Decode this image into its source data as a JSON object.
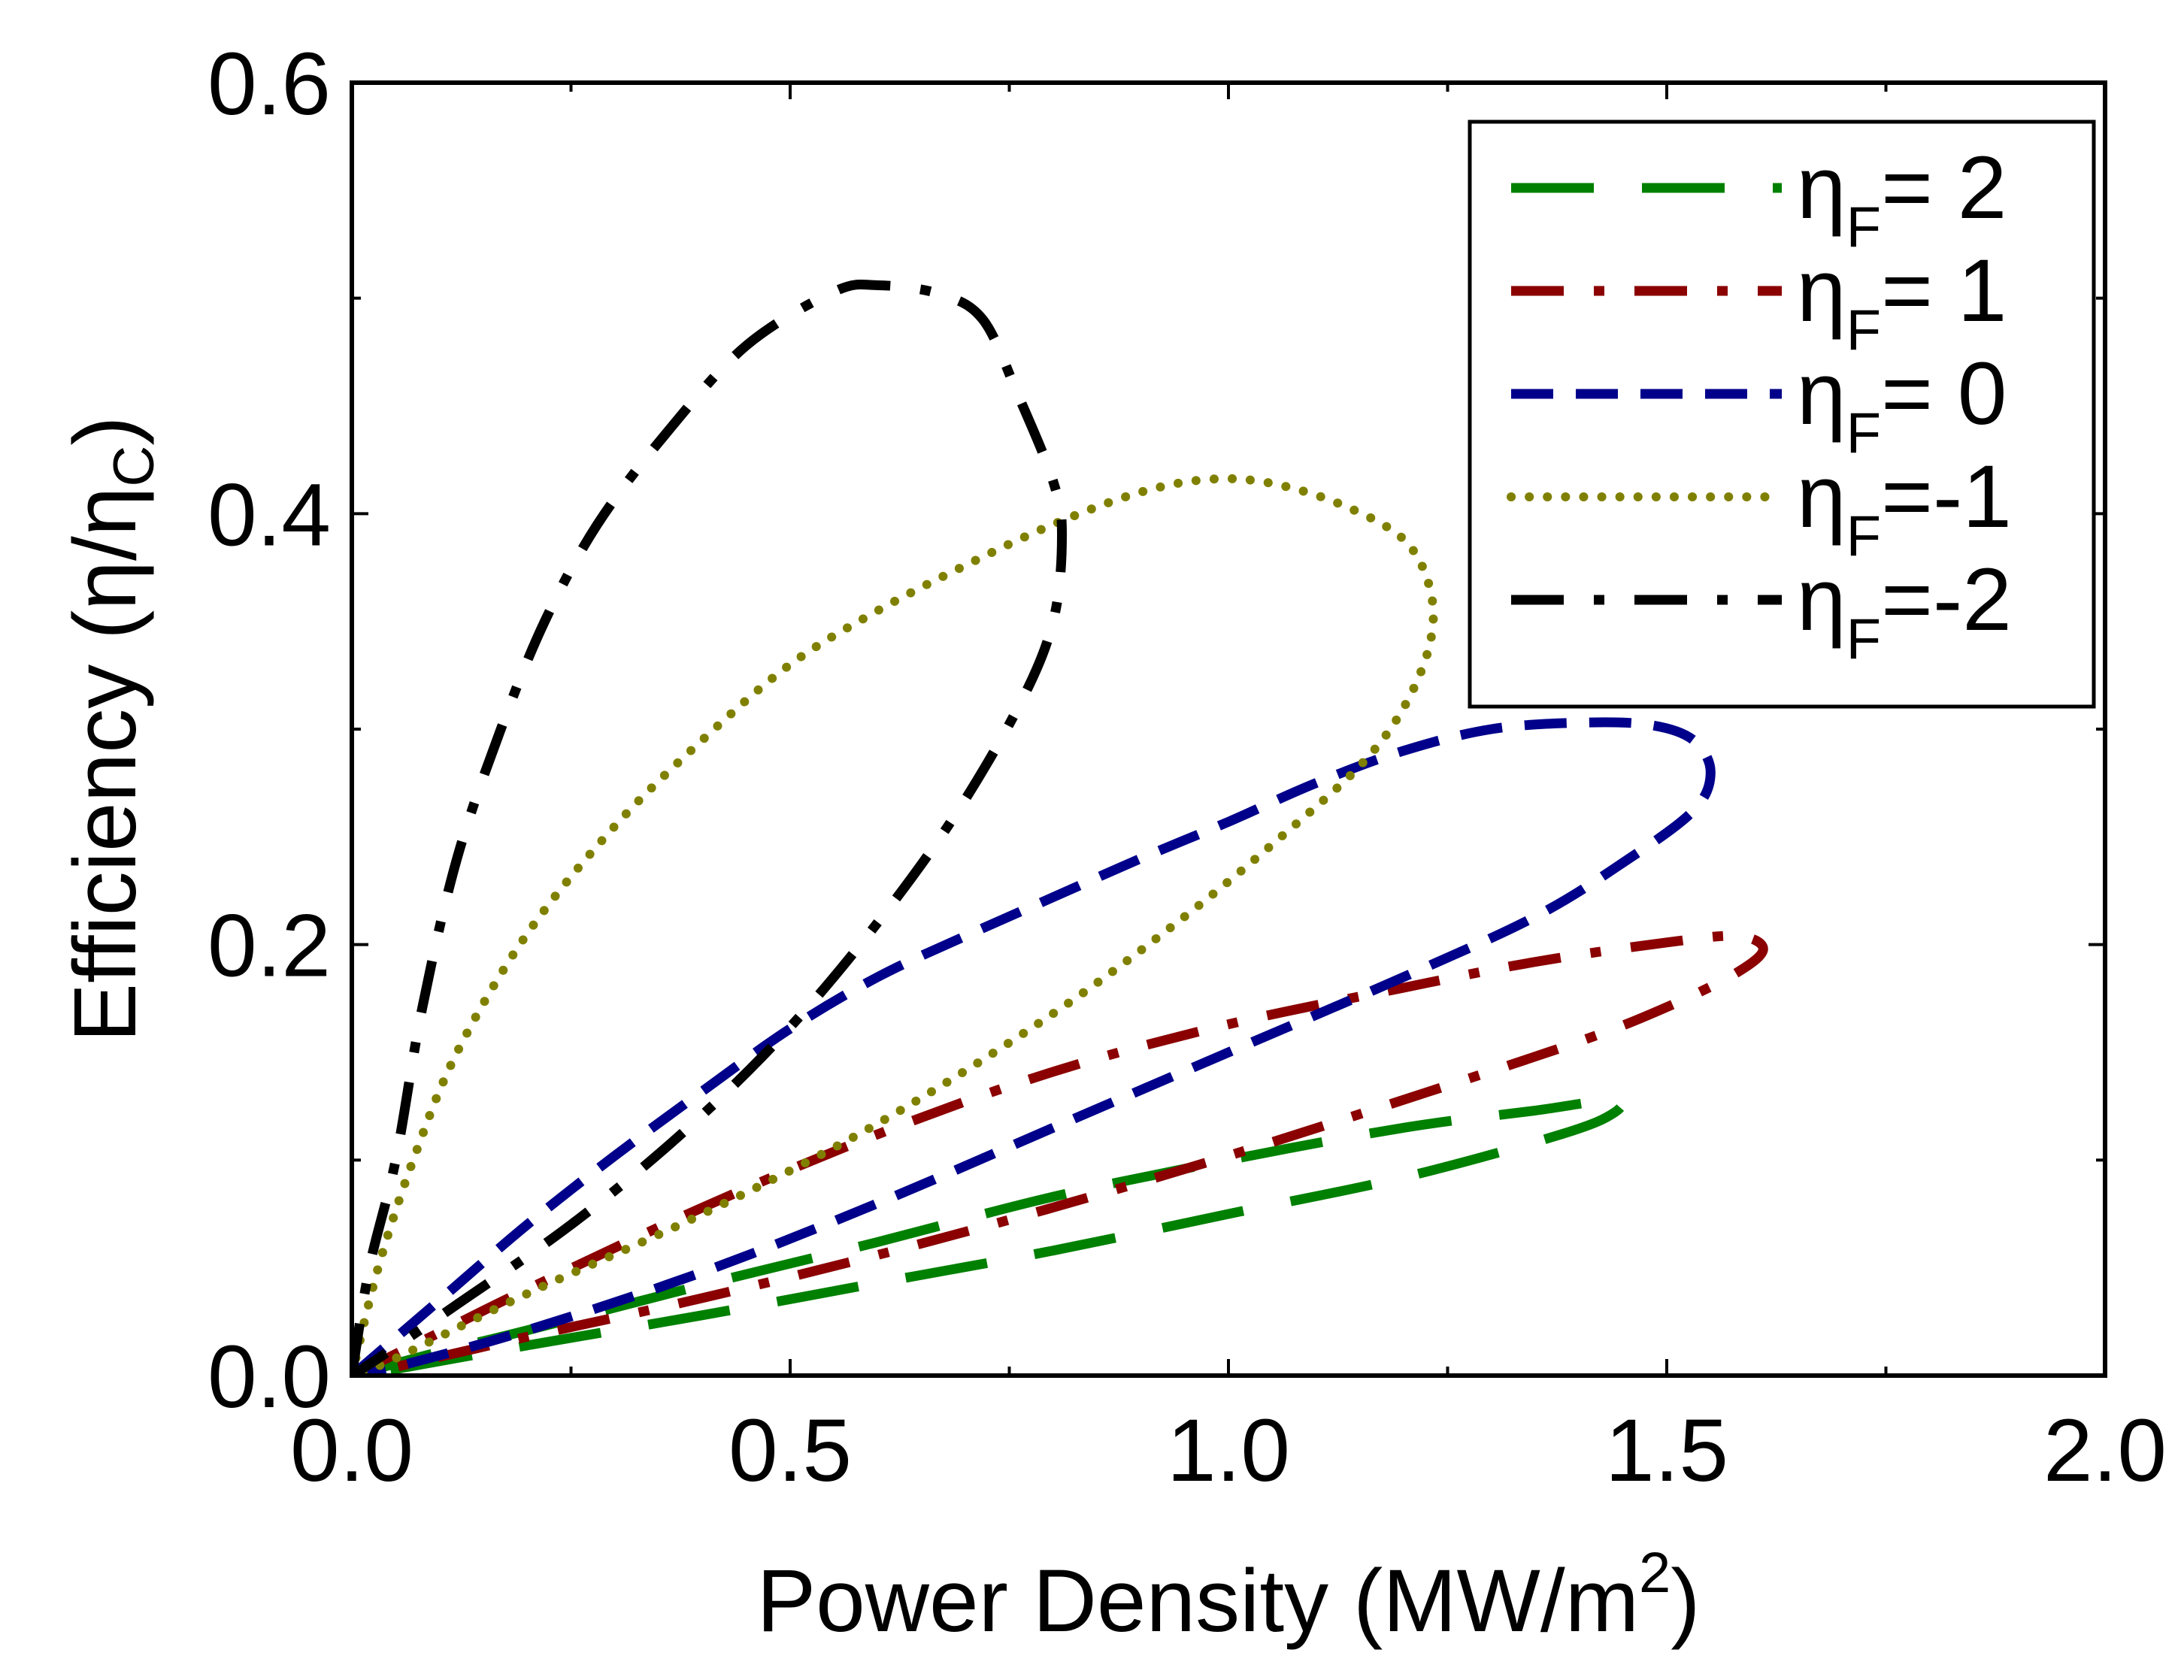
{
  "chart_data": {
    "type": "line",
    "title": "",
    "xlabel": {
      "main": "Power Density (MW/m",
      "superscript": "2",
      "close": ")"
    },
    "ylabel": {
      "main": "Efficiency (η/η",
      "subscript": "C",
      "close": ")"
    },
    "xlim": [
      0,
      2
    ],
    "ylim": [
      0,
      0.6
    ],
    "xticks": [
      0,
      0.5,
      1.0,
      1.5,
      2.0
    ],
    "xtick_labels": [
      "0.0",
      "0.5",
      "1.0",
      "1.5",
      "2.0"
    ],
    "xminor": [
      0.25,
      0.75,
      1.25,
      1.75
    ],
    "yticks": [
      0,
      0.2,
      0.4,
      0.6
    ],
    "ytick_labels": [
      "0.0",
      "0.2",
      "0.4",
      "0.6"
    ],
    "yminor": [
      0.1,
      0.3,
      0.5
    ],
    "grid": false,
    "legend_position": "top-right",
    "series": [
      {
        "name": "ηF= 2",
        "legend_symbol": "η",
        "legend_sub": "F",
        "legend_value": "= 2",
        "color": "#008000",
        "style": "long-dash",
        "points": [
          [
            0.0,
            0.0
          ],
          [
            0.1,
            0.011
          ],
          [
            0.2,
            0.021
          ],
          [
            0.4,
            0.042
          ],
          [
            0.6,
            0.062
          ],
          [
            0.8,
            0.083
          ],
          [
            1.0,
            0.1
          ],
          [
            1.2,
            0.115
          ],
          [
            1.35,
            0.123
          ],
          [
            1.44,
            0.128
          ],
          [
            1.44,
            0.122
          ],
          [
            1.38,
            0.112
          ],
          [
            1.2,
            0.092
          ],
          [
            1.0,
            0.075
          ],
          [
            0.8,
            0.058
          ],
          [
            0.6,
            0.043
          ],
          [
            0.4,
            0.028
          ],
          [
            0.2,
            0.014
          ],
          [
            0.05,
            0.003
          ],
          [
            0.0,
            0.0
          ]
        ]
      },
      {
        "name": "ηF= 1",
        "legend_symbol": "η",
        "legend_sub": "F",
        "legend_value": "= 1",
        "color": "#8B0000",
        "style": "dash-dot",
        "points": [
          [
            0.0,
            0.0
          ],
          [
            0.1,
            0.02
          ],
          [
            0.2,
            0.04
          ],
          [
            0.4,
            0.078
          ],
          [
            0.6,
            0.112
          ],
          [
            0.8,
            0.141
          ],
          [
            1.0,
            0.163
          ],
          [
            1.2,
            0.18
          ],
          [
            1.35,
            0.192
          ],
          [
            1.5,
            0.201
          ],
          [
            1.58,
            0.204
          ],
          [
            1.61,
            0.198
          ],
          [
            1.58,
            0.187
          ],
          [
            1.5,
            0.171
          ],
          [
            1.4,
            0.155
          ],
          [
            1.2,
            0.128
          ],
          [
            1.0,
            0.102
          ],
          [
            0.8,
            0.078
          ],
          [
            0.6,
            0.056
          ],
          [
            0.4,
            0.036
          ],
          [
            0.2,
            0.018
          ],
          [
            0.05,
            0.004
          ],
          [
            0.0,
            0.0
          ]
        ]
      },
      {
        "name": "ηF= 0",
        "legend_symbol": "η",
        "legend_sub": "F",
        "legend_value": "= 0",
        "color": "#00008B",
        "style": "dash",
        "points": [
          [
            0.0,
            0.0
          ],
          [
            0.1,
            0.035
          ],
          [
            0.2,
            0.07
          ],
          [
            0.3,
            0.102
          ],
          [
            0.4,
            0.132
          ],
          [
            0.5,
            0.161
          ],
          [
            0.6,
            0.185
          ],
          [
            0.7,
            0.204
          ],
          [
            0.8,
            0.222
          ],
          [
            0.9,
            0.24
          ],
          [
            1.0,
            0.257
          ],
          [
            1.1,
            0.275
          ],
          [
            1.2,
            0.29
          ],
          [
            1.3,
            0.3
          ],
          [
            1.4,
            0.303
          ],
          [
            1.48,
            0.302
          ],
          [
            1.53,
            0.295
          ],
          [
            1.55,
            0.28
          ],
          [
            1.53,
            0.262
          ],
          [
            1.45,
            0.238
          ],
          [
            1.35,
            0.213
          ],
          [
            1.2,
            0.185
          ],
          [
            1.0,
            0.15
          ],
          [
            0.8,
            0.115
          ],
          [
            0.6,
            0.08
          ],
          [
            0.4,
            0.048
          ],
          [
            0.2,
            0.021
          ],
          [
            0.05,
            0.004
          ],
          [
            0.0,
            0.0
          ]
        ]
      },
      {
        "name": "ηF=-1",
        "legend_symbol": "η",
        "legend_sub": "F",
        "legend_value": "=-1",
        "color": "#808000",
        "style": "dot",
        "points": [
          [
            0.0,
            0.0
          ],
          [
            0.03,
            0.05
          ],
          [
            0.07,
            0.1
          ],
          [
            0.12,
            0.15
          ],
          [
            0.2,
            0.205
          ],
          [
            0.3,
            0.255
          ],
          [
            0.4,
            0.295
          ],
          [
            0.5,
            0.33
          ],
          [
            0.6,
            0.355
          ],
          [
            0.7,
            0.376
          ],
          [
            0.8,
            0.395
          ],
          [
            0.9,
            0.41
          ],
          [
            0.98,
            0.416
          ],
          [
            1.05,
            0.414
          ],
          [
            1.13,
            0.404
          ],
          [
            1.2,
            0.388
          ],
          [
            1.23,
            0.365
          ],
          [
            1.23,
            0.34
          ],
          [
            1.2,
            0.31
          ],
          [
            1.15,
            0.283
          ],
          [
            1.06,
            0.25
          ],
          [
            0.95,
            0.213
          ],
          [
            0.8,
            0.168
          ],
          [
            0.6,
            0.117
          ],
          [
            0.4,
            0.075
          ],
          [
            0.2,
            0.038
          ],
          [
            0.05,
            0.008
          ],
          [
            0.0,
            0.0
          ]
        ]
      },
      {
        "name": "ηF=-2",
        "legend_symbol": "η",
        "legend_sub": "F",
        "legend_value": "=-2",
        "color": "#000000",
        "style": "dash-dot",
        "points": [
          [
            0.0,
            0.0
          ],
          [
            0.02,
            0.05
          ],
          [
            0.05,
            0.1
          ],
          [
            0.08,
            0.17
          ],
          [
            0.12,
            0.24
          ],
          [
            0.17,
            0.3
          ],
          [
            0.22,
            0.35
          ],
          [
            0.28,
            0.395
          ],
          [
            0.36,
            0.438
          ],
          [
            0.45,
            0.478
          ],
          [
            0.55,
            0.503
          ],
          [
            0.6,
            0.506
          ],
          [
            0.67,
            0.502
          ],
          [
            0.72,
            0.49
          ],
          [
            0.76,
            0.455
          ],
          [
            0.8,
            0.415
          ],
          [
            0.81,
            0.39
          ],
          [
            0.8,
            0.35
          ],
          [
            0.76,
            0.31
          ],
          [
            0.68,
            0.255
          ],
          [
            0.58,
            0.2
          ],
          [
            0.48,
            0.153
          ],
          [
            0.37,
            0.11
          ],
          [
            0.25,
            0.07
          ],
          [
            0.12,
            0.033
          ],
          [
            0.03,
            0.008
          ],
          [
            0.0,
            0.0
          ]
        ]
      }
    ]
  }
}
